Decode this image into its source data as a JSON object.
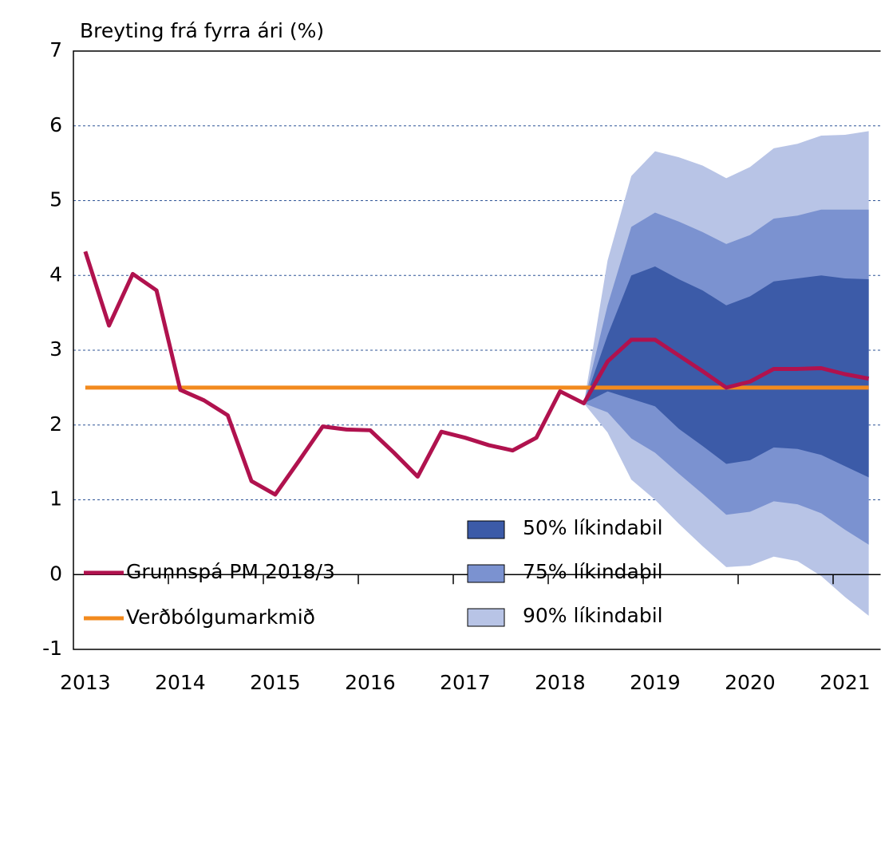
{
  "chart_data": {
    "type": "fan",
    "title": "Breyting frá fyrra ári (%)",
    "categories": [
      "2013",
      null,
      null,
      null,
      "2014",
      null,
      null,
      null,
      "2015",
      null,
      null,
      null,
      "2016",
      null,
      null,
      null,
      "2017",
      null,
      null,
      null,
      "2018",
      null,
      null,
      null,
      "2019",
      null,
      null,
      null,
      "2020",
      null,
      null,
      null,
      "2021",
      null
    ],
    "ylim": [
      -1,
      7
    ],
    "yticks": [
      -1,
      0,
      1,
      2,
      3,
      4,
      5,
      6,
      7
    ],
    "grid": true,
    "series": [
      {
        "name": "Grunnspá PM 2018/3",
        "color": "#b0124e",
        "values": [
          4.32,
          3.33,
          4.02,
          3.8,
          2.47,
          2.33,
          2.13,
          1.25,
          1.07,
          1.52,
          1.98,
          1.94,
          1.93,
          1.63,
          1.31,
          1.91,
          1.83,
          1.73,
          1.66,
          1.83,
          2.45,
          2.29,
          2.85,
          3.14,
          3.14,
          2.93,
          2.72,
          2.5,
          2.58,
          2.75,
          2.75,
          2.76,
          2.68,
          2.62
        ]
      },
      {
        "name": "Verðbólgumarkmið",
        "color": "#f28a1e",
        "values": [
          2.5,
          2.5,
          2.5,
          2.5,
          2.5,
          2.5,
          2.5,
          2.5,
          2.5,
          2.5,
          2.5,
          2.5,
          2.5,
          2.5,
          2.5,
          2.5,
          2.5,
          2.5,
          2.5,
          2.5,
          2.5,
          2.5,
          2.5,
          2.5,
          2.5,
          2.5,
          2.5,
          2.5,
          2.5,
          2.5,
          2.5,
          2.5,
          2.5,
          2.5
        ]
      }
    ],
    "bands": [
      {
        "name": "90% líkindabil",
        "color": "#b8c4e6",
        "lower": [
          null,
          null,
          null,
          null,
          null,
          null,
          null,
          null,
          null,
          null,
          null,
          null,
          null,
          null,
          null,
          null,
          null,
          null,
          null,
          null,
          null,
          2.29,
          1.9,
          1.27,
          1.0,
          0.68,
          0.38,
          0.1,
          0.12,
          0.24,
          0.18,
          -0.02,
          -0.3,
          -0.55
        ],
        "upper": [
          null,
          null,
          null,
          null,
          null,
          null,
          null,
          null,
          null,
          null,
          null,
          null,
          null,
          null,
          null,
          null,
          null,
          null,
          null,
          null,
          null,
          2.29,
          4.2,
          5.33,
          5.66,
          5.58,
          5.47,
          5.3,
          5.45,
          5.7,
          5.76,
          5.87,
          5.88,
          5.93
        ]
      },
      {
        "name": "75% líkindabil",
        "color": "#7b92d0",
        "lower": [
          null,
          null,
          null,
          null,
          null,
          null,
          null,
          null,
          null,
          null,
          null,
          null,
          null,
          null,
          null,
          null,
          null,
          null,
          null,
          null,
          null,
          2.29,
          2.17,
          1.82,
          1.63,
          1.35,
          1.08,
          0.8,
          0.84,
          0.98,
          0.94,
          0.82,
          0.6,
          0.4
        ],
        "upper": [
          null,
          null,
          null,
          null,
          null,
          null,
          null,
          null,
          null,
          null,
          null,
          null,
          null,
          null,
          null,
          null,
          null,
          null,
          null,
          null,
          null,
          2.29,
          3.6,
          4.65,
          4.84,
          4.72,
          4.58,
          4.42,
          4.54,
          4.76,
          4.8,
          4.88,
          4.88,
          4.88
        ]
      },
      {
        "name": "50% líkindabil",
        "color": "#3c5ba8",
        "lower": [
          null,
          null,
          null,
          null,
          null,
          null,
          null,
          null,
          null,
          null,
          null,
          null,
          null,
          null,
          null,
          null,
          null,
          null,
          null,
          null,
          null,
          2.29,
          2.45,
          2.35,
          2.25,
          1.95,
          1.72,
          1.48,
          1.53,
          1.7,
          1.68,
          1.6,
          1.45,
          1.3
        ],
        "upper": [
          null,
          null,
          null,
          null,
          null,
          null,
          null,
          null,
          null,
          null,
          null,
          null,
          null,
          null,
          null,
          null,
          null,
          null,
          null,
          null,
          null,
          2.29,
          3.2,
          4.0,
          4.12,
          3.95,
          3.8,
          3.6,
          3.72,
          3.92,
          3.96,
          4.0,
          3.96,
          3.95
        ]
      }
    ]
  }
}
